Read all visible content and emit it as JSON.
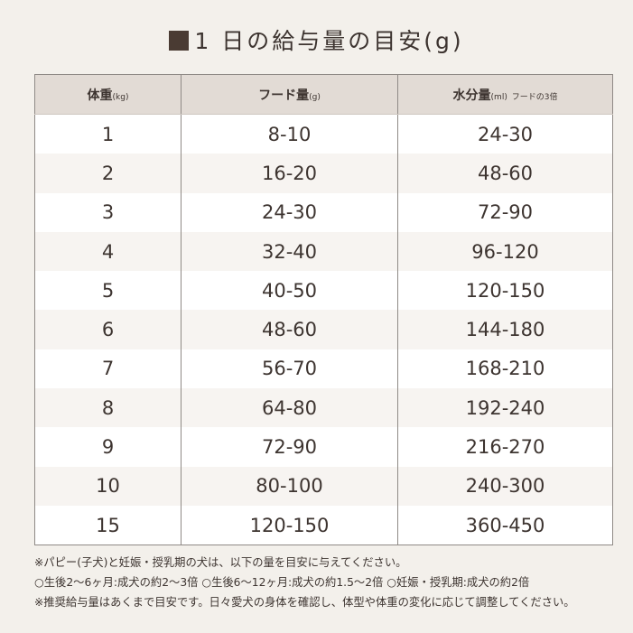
{
  "title": "1 日の給与量の目安(g)",
  "table": {
    "headers": [
      {
        "main": "体重",
        "unit": "(kg)",
        "extra": ""
      },
      {
        "main": "フード量",
        "unit": "(g)",
        "extra": ""
      },
      {
        "main": "水分量",
        "unit": "(ml)",
        "extra": "フードの3倍"
      }
    ],
    "rows": [
      [
        "1",
        "8-10",
        "24-30"
      ],
      [
        "2",
        "16-20",
        "48-60"
      ],
      [
        "3",
        "24-30",
        "72-90"
      ],
      [
        "4",
        "32-40",
        "96-120"
      ],
      [
        "5",
        "40-50",
        "120-150"
      ],
      [
        "6",
        "48-60",
        "144-180"
      ],
      [
        "7",
        "56-70",
        "168-210"
      ],
      [
        "8",
        "64-80",
        "192-240"
      ],
      [
        "9",
        "72-90",
        "216-270"
      ],
      [
        "10",
        "80-100",
        "240-300"
      ],
      [
        "15",
        "120-150",
        "360-450"
      ]
    ]
  },
  "notes": [
    "※パピー(子犬)と妊娠・授乳期の犬は、以下の量を目安に与えてください。",
    "○生後2〜6ヶ月:成犬の約2〜3倍 ○生後6〜12ヶ月:成犬の約1.5〜2倍 ○妊娠・授乳期:成犬の約2倍",
    "※推奨給与量はあくまで目安です。日々愛犬の身体を確認し、体型や体重の変化に応じて調整してください。"
  ]
}
